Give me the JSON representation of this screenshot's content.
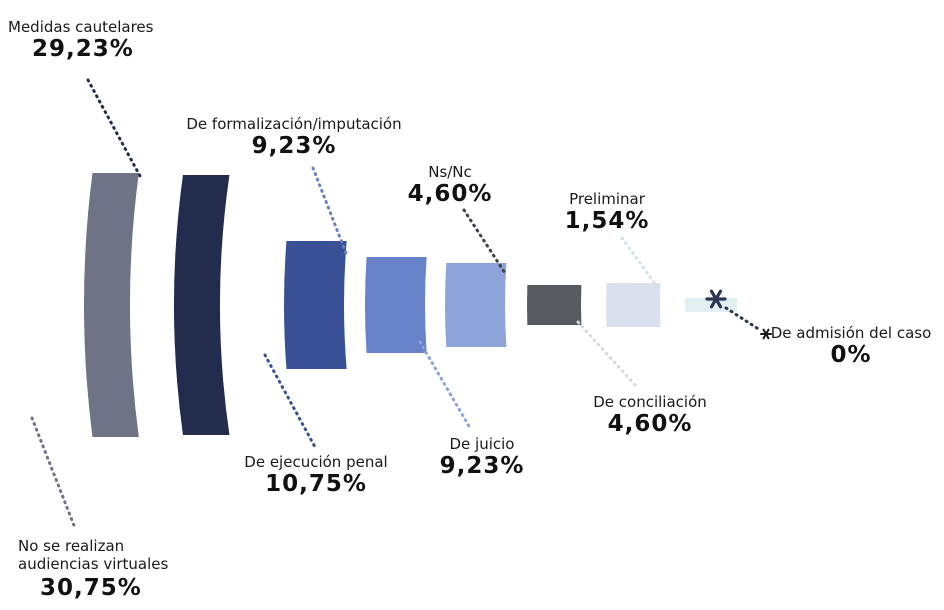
{
  "chart_data": {
    "type": "pie",
    "segments": [
      {
        "label": "No se realizan audiencias virtuales",
        "label_lines": [
          "No se realizan",
          "audiencias virtuales"
        ],
        "value": 30.75,
        "display": "30,75%",
        "color": "#6e7386"
      },
      {
        "label": "Medidas cautelares",
        "value": 29.23,
        "display": "29,23%",
        "color": "#222c4d"
      },
      {
        "label": "De ejecución penal",
        "value": 10.75,
        "display": "10,75%",
        "color": "#3a5096"
      },
      {
        "label": "De formalización/imputación",
        "value": 9.23,
        "display": "9,23%",
        "color": "#6882c9"
      },
      {
        "label": "De juicio",
        "value": 9.23,
        "display": "9,23%",
        "color": "#8ea3da"
      },
      {
        "label": "Ns/Nc",
        "value": 4.6,
        "display": "4,60%",
        "color": "#555b61"
      },
      {
        "label": "De conciliación",
        "value": 4.6,
        "display": "4,60%",
        "color": "#dbe0ef"
      },
      {
        "label": "Preliminar",
        "value": 1.54,
        "display": "1,54%",
        "color": "#e2eef2"
      },
      {
        "label": "De admisión del caso",
        "value": 0,
        "display": "0%",
        "color": "#2b3550"
      }
    ]
  }
}
